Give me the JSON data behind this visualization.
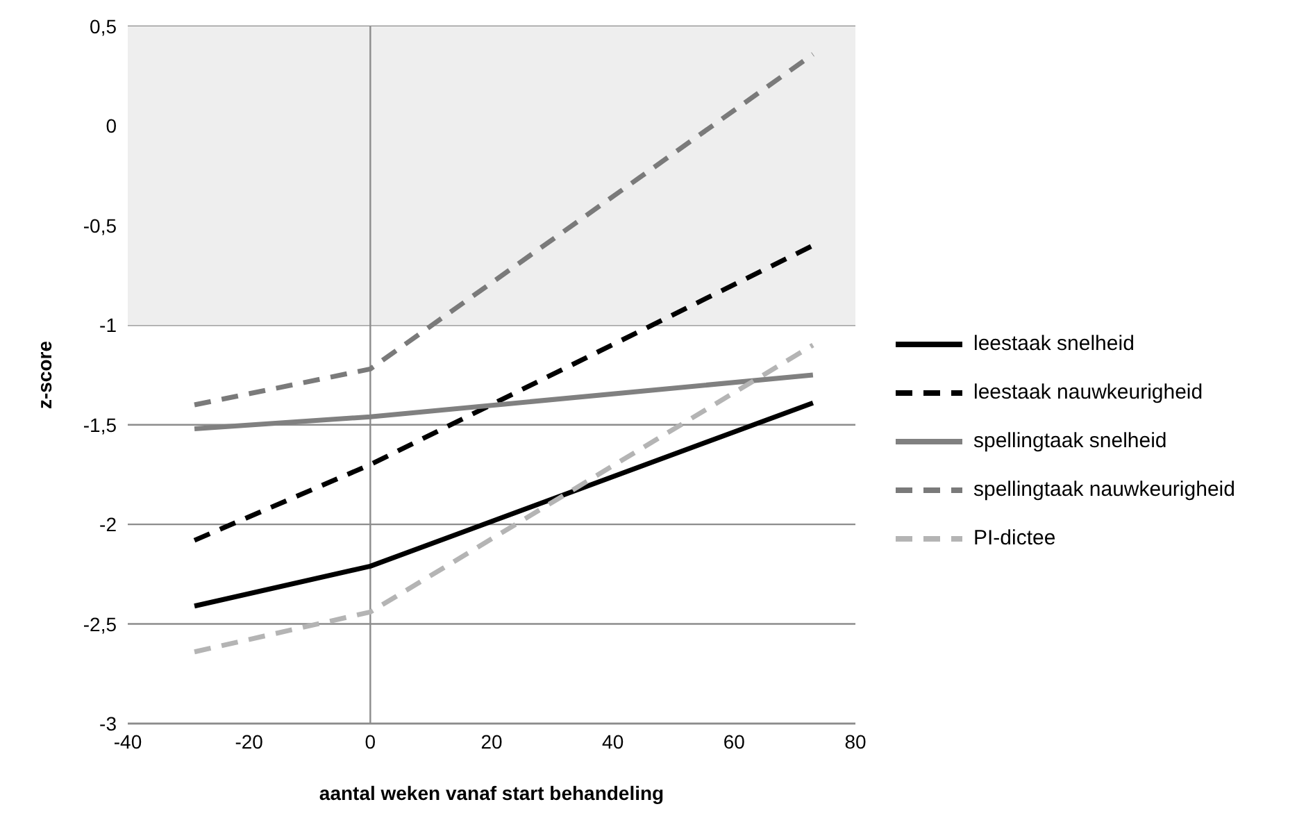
{
  "chart_data": {
    "type": "line",
    "xlabel": "aantal weken vanaf start behandeling",
    "ylabel": "z-score",
    "x": [
      -29,
      0,
      73
    ],
    "series": [
      {
        "name": "leestaak snelheid",
        "color": "#000000",
        "line_style": "solid",
        "values": [
          -2.41,
          -2.21,
          -1.39
        ]
      },
      {
        "name": "leestaak nauwkeurigheid",
        "color": "#000000",
        "line_style": "dashed",
        "values": [
          -2.08,
          -1.7,
          -0.6
        ]
      },
      {
        "name": "spellingtaak snelheid",
        "color": "#808080",
        "line_style": "solid",
        "values": [
          -1.52,
          -1.46,
          -1.25
        ]
      },
      {
        "name": "spellingtaak nauwkeurigheid",
        "color": "#7a7a7a",
        "line_style": "dashed",
        "values": [
          -1.4,
          -1.22,
          0.36
        ]
      },
      {
        "name": "PI-dictee",
        "color": "#b4b4b4",
        "line_style": "dashed",
        "values": [
          -2.64,
          -2.44,
          -1.1
        ]
      }
    ],
    "xlim": [
      -40,
      80
    ],
    "xticks": [
      -40,
      -20,
      0,
      20,
      40,
      60,
      80
    ],
    "ylim": [
      -3,
      0.5
    ],
    "yticks": [
      {
        "value": -3,
        "label": "-3"
      },
      {
        "value": -2.5,
        "label": "-2,5"
      },
      {
        "value": -2,
        "label": "-2"
      },
      {
        "value": -1.5,
        "label": "-1,5"
      },
      {
        "value": -1,
        "label": "-1"
      },
      {
        "value": -0.5,
        "label": "-0,5"
      },
      {
        "value": 0,
        "label": "0"
      },
      {
        "value": 0.5,
        "label": "0,5"
      }
    ],
    "bands": [
      {
        "axis": "y",
        "from": -1,
        "to": 0.5,
        "color": "#eeeeee"
      }
    ],
    "ref_lines": [
      {
        "axis": "x",
        "value": 0,
        "color": "#8c8c8c"
      }
    ],
    "grid": "y",
    "legend": "right",
    "marker": "none"
  }
}
